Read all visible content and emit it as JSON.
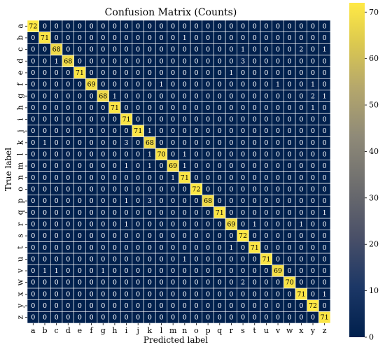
{
  "chart_data": {
    "type": "heatmap",
    "title": "Confusion Matrix (Counts)",
    "xlabel": "Predicted label",
    "ylabel": "True label",
    "categories": [
      "a",
      "b",
      "c",
      "d",
      "e",
      "f",
      "g",
      "h",
      "i",
      "j",
      "k",
      "l",
      "m",
      "n",
      "o",
      "p",
      "q",
      "r",
      "s",
      "t",
      "u",
      "v",
      "w",
      "x",
      "y",
      "z"
    ],
    "matrix": [
      [
        72,
        0,
        0,
        0,
        0,
        0,
        0,
        0,
        0,
        0,
        0,
        0,
        0,
        0,
        0,
        0,
        0,
        0,
        0,
        0,
        0,
        0,
        0,
        0,
        0,
        0
      ],
      [
        0,
        71,
        0,
        0,
        0,
        0,
        0,
        0,
        0,
        0,
        0,
        0,
        0,
        1,
        0,
        0,
        0,
        0,
        0,
        0,
        0,
        0,
        0,
        0,
        0,
        0
      ],
      [
        0,
        0,
        68,
        0,
        0,
        0,
        0,
        0,
        0,
        0,
        0,
        0,
        0,
        0,
        0,
        0,
        0,
        0,
        1,
        0,
        0,
        0,
        0,
        2,
        0,
        1
      ],
      [
        0,
        0,
        1,
        68,
        0,
        0,
        0,
        0,
        0,
        0,
        0,
        0,
        0,
        0,
        0,
        0,
        0,
        0,
        3,
        0,
        0,
        0,
        0,
        0,
        0,
        0
      ],
      [
        0,
        0,
        0,
        0,
        71,
        0,
        0,
        0,
        0,
        0,
        0,
        0,
        0,
        0,
        0,
        0,
        0,
        1,
        0,
        0,
        0,
        0,
        0,
        0,
        0,
        0
      ],
      [
        0,
        0,
        0,
        0,
        0,
        69,
        0,
        0,
        0,
        0,
        0,
        1,
        0,
        0,
        0,
        0,
        0,
        0,
        0,
        0,
        0,
        1,
        0,
        0,
        1,
        0
      ],
      [
        0,
        0,
        0,
        0,
        0,
        0,
        68,
        1,
        0,
        0,
        0,
        0,
        0,
        0,
        0,
        0,
        0,
        0,
        0,
        0,
        0,
        0,
        0,
        0,
        2,
        1
      ],
      [
        0,
        0,
        0,
        0,
        0,
        0,
        0,
        71,
        0,
        0,
        0,
        0,
        0,
        0,
        0,
        0,
        0,
        0,
        0,
        0,
        0,
        0,
        0,
        0,
        1,
        0
      ],
      [
        0,
        0,
        0,
        0,
        0,
        0,
        0,
        0,
        71,
        0,
        0,
        0,
        0,
        0,
        0,
        0,
        0,
        0,
        0,
        0,
        0,
        0,
        0,
        0,
        0,
        0
      ],
      [
        0,
        0,
        0,
        0,
        0,
        0,
        0,
        0,
        0,
        71,
        1,
        0,
        0,
        0,
        0,
        0,
        0,
        0,
        0,
        0,
        0,
        0,
        0,
        0,
        0,
        0
      ],
      [
        0,
        1,
        0,
        0,
        0,
        0,
        0,
        0,
        3,
        0,
        68,
        0,
        0,
        0,
        0,
        0,
        0,
        0,
        0,
        0,
        0,
        0,
        0,
        0,
        0,
        0
      ],
      [
        0,
        0,
        0,
        0,
        0,
        0,
        0,
        0,
        0,
        0,
        1,
        70,
        0,
        1,
        0,
        0,
        0,
        0,
        0,
        0,
        0,
        0,
        0,
        0,
        0,
        0
      ],
      [
        0,
        0,
        0,
        0,
        0,
        0,
        0,
        0,
        1,
        0,
        1,
        0,
        69,
        1,
        0,
        0,
        0,
        0,
        0,
        0,
        0,
        0,
        0,
        0,
        0,
        0
      ],
      [
        0,
        0,
        0,
        0,
        0,
        0,
        0,
        0,
        0,
        0,
        0,
        0,
        1,
        71,
        0,
        0,
        0,
        0,
        0,
        0,
        0,
        0,
        0,
        0,
        0,
        0
      ],
      [
        0,
        0,
        0,
        0,
        0,
        0,
        0,
        0,
        0,
        0,
        0,
        0,
        0,
        0,
        72,
        0,
        0,
        0,
        0,
        0,
        0,
        0,
        0,
        0,
        0,
        0
      ],
      [
        0,
        0,
        0,
        0,
        0,
        0,
        0,
        0,
        1,
        0,
        3,
        0,
        0,
        0,
        0,
        68,
        0,
        0,
        0,
        0,
        0,
        0,
        0,
        0,
        0,
        0
      ],
      [
        0,
        0,
        0,
        0,
        0,
        0,
        0,
        0,
        0,
        0,
        0,
        0,
        0,
        0,
        0,
        0,
        71,
        0,
        0,
        0,
        0,
        0,
        0,
        0,
        0,
        1
      ],
      [
        0,
        0,
        0,
        0,
        0,
        0,
        0,
        0,
        1,
        0,
        0,
        0,
        0,
        0,
        0,
        0,
        0,
        69,
        0,
        1,
        0,
        0,
        0,
        1,
        0,
        0
      ],
      [
        0,
        0,
        0,
        0,
        0,
        0,
        0,
        0,
        0,
        0,
        0,
        0,
        0,
        0,
        0,
        0,
        0,
        0,
        72,
        0,
        0,
        0,
        0,
        0,
        0,
        0
      ],
      [
        0,
        0,
        0,
        0,
        0,
        0,
        0,
        0,
        0,
        0,
        0,
        0,
        0,
        0,
        0,
        0,
        0,
        1,
        0,
        71,
        0,
        0,
        0,
        0,
        0,
        0
      ],
      [
        0,
        0,
        0,
        0,
        0,
        0,
        0,
        0,
        0,
        0,
        0,
        0,
        0,
        1,
        0,
        0,
        0,
        0,
        0,
        0,
        71,
        0,
        0,
        0,
        0,
        0
      ],
      [
        0,
        1,
        1,
        0,
        0,
        0,
        1,
        0,
        0,
        0,
        0,
        0,
        0,
        0,
        0,
        0,
        0,
        0,
        0,
        0,
        0,
        69,
        0,
        0,
        0,
        0
      ],
      [
        0,
        0,
        0,
        0,
        0,
        0,
        0,
        0,
        0,
        0,
        0,
        0,
        0,
        0,
        0,
        0,
        0,
        0,
        2,
        0,
        0,
        0,
        70,
        0,
        0,
        0
      ],
      [
        0,
        0,
        0,
        0,
        0,
        0,
        0,
        0,
        0,
        0,
        0,
        0,
        0,
        0,
        0,
        0,
        0,
        0,
        0,
        0,
        0,
        0,
        0,
        71,
        0,
        1
      ],
      [
        0,
        0,
        0,
        0,
        0,
        0,
        0,
        0,
        0,
        0,
        0,
        0,
        0,
        0,
        0,
        0,
        0,
        0,
        0,
        0,
        0,
        0,
        0,
        0,
        72,
        0
      ],
      [
        0,
        0,
        0,
        0,
        0,
        0,
        0,
        0,
        0,
        0,
        0,
        0,
        0,
        0,
        0,
        0,
        0,
        0,
        0,
        0,
        0,
        0,
        0,
        0,
        0,
        71
      ]
    ],
    "colorbar": {
      "min": 0,
      "max": 72,
      "ticks": [
        0,
        10,
        20,
        30,
        40,
        50,
        60,
        70
      ],
      "colormap": "cividis",
      "low_color": "#00204d",
      "mid_color": "#7c7b78",
      "high_color": "#ffe945"
    },
    "grid": true,
    "grid_color": "#ffffff"
  }
}
